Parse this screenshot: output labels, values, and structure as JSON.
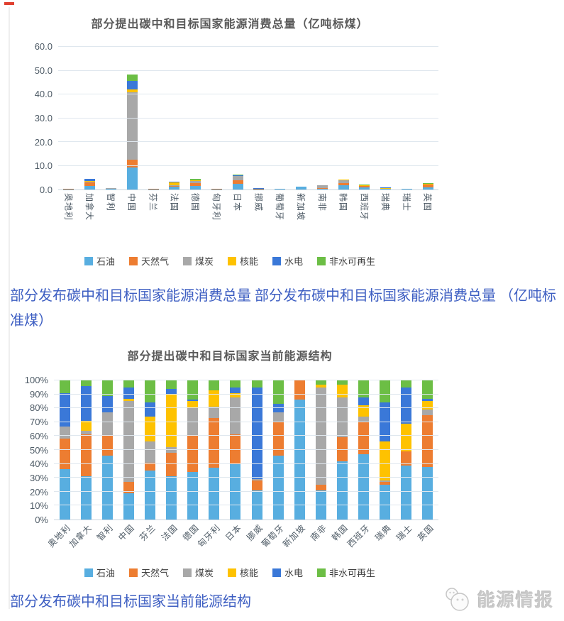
{
  "captions": {
    "middle": "部分发布碳中和目标国家能源消费总量 部分发布碳中和目标国家能源消费总量 （亿吨标准煤）",
    "bottom": "部分发布碳中和目标国家当前能源结构"
  },
  "logo": {
    "text": "能源情报"
  },
  "colors": {
    "oil": "#58aee0",
    "gas": "#ed7d31",
    "coal": "#a8a8a8",
    "nuclear": "#fec200",
    "hydro": "#3a78d8",
    "renewable": "#6cbe45",
    "caption_blue": "#3d5ec2",
    "title_gray": "#595959",
    "red_dash": "#e04030"
  },
  "chart_data": [
    {
      "type": "bar",
      "stacked": true,
      "title": "部分提出碳中和目标国家能源消费总量（亿吨标煤）",
      "categories": [
        "奥地利",
        "加拿大",
        "智利",
        "中国",
        "芬兰",
        "法国",
        "德国",
        "匈牙利",
        "日本",
        "挪威",
        "葡萄牙",
        "新加坡",
        "南非",
        "韩国",
        "西班牙",
        "瑞典",
        "瑞士",
        "英国"
      ],
      "series": [
        {
          "name": "石油",
          "color": "#58aee0",
          "values": [
            0.15,
            1.5,
            0.25,
            9.3,
            0.15,
            1.1,
            1.6,
            0.15,
            2.5,
            0.13,
            0.16,
            1.1,
            0.4,
            1.8,
            1.0,
            0.22,
            0.17,
            1.0
          ]
        },
        {
          "name": "天然气",
          "color": "#ed7d31",
          "values": [
            0.1,
            1.6,
            0.1,
            3.2,
            0.03,
            0.55,
            1.2,
            0.14,
            1.4,
            0.05,
            0.08,
            0.2,
            0.08,
            0.75,
            0.5,
            0.02,
            0.05,
            1.05
          ]
        },
        {
          "name": "煤炭",
          "color": "#a8a8a8",
          "values": [
            0.05,
            0.2,
            0.15,
            28.5,
            0.07,
            0.1,
            0.9,
            0.03,
            1.7,
            0.01,
            0.04,
            0,
            1.32,
            1.2,
            0.1,
            0.05,
            0,
            0.1
          ]
        },
        {
          "name": "核能",
          "color": "#fec200",
          "values": [
            0,
            0.3,
            0,
            1.0,
            0.08,
            1.3,
            0.2,
            0.05,
            0.2,
            0,
            0,
            0,
            0.04,
            0.4,
            0.2,
            0.25,
            0.1,
            0.2
          ]
        },
        {
          "name": "水电",
          "color": "#3a78d8",
          "values": [
            0.1,
            0.9,
            0.05,
            3.8,
            0.06,
            0.15,
            0.1,
            0,
            0.25,
            0.38,
            0.02,
            0,
            0,
            0,
            0.1,
            0.25,
            0.11,
            0.05
          ]
        },
        {
          "name": "非水可再生",
          "color": "#6cbe45",
          "values": [
            0.05,
            0.1,
            0.05,
            2.7,
            0.06,
            0.2,
            0.6,
            0.03,
            0.35,
            0.04,
            0.05,
            0,
            0.06,
            0.15,
            0.2,
            0.11,
            0.02,
            0.3
          ]
        }
      ],
      "ylim": [
        0,
        60
      ],
      "y_ticks": [
        "0.0",
        "10.0",
        "20.0",
        "30.0",
        "40.0",
        "50.0",
        "60.0"
      ],
      "grid": true,
      "legend_position": "bottom",
      "x_label_rotation": 90
    },
    {
      "type": "bar",
      "stacked": true,
      "percent": true,
      "title": "部分提出碳中和目标国家当前能源结构",
      "categories": [
        "奥地利",
        "加拿大",
        "智利",
        "中国",
        "芬兰",
        "法国",
        "德国",
        "匈牙利",
        "日本",
        "挪威",
        "葡萄牙",
        "新加坡",
        "南非",
        "韩国",
        "西班牙",
        "瑞典",
        "瑞士",
        "英国"
      ],
      "series": [
        {
          "name": "石油",
          "color": "#58aee0",
          "values": [
            36,
            31,
            46,
            19,
            35,
            31,
            34,
            37,
            40,
            21,
            46,
            86,
            21,
            42,
            47,
            25,
            39,
            38
          ]
        },
        {
          "name": "天然气",
          "color": "#ed7d31",
          "values": [
            22,
            30,
            14,
            8,
            6,
            17,
            26,
            36,
            21,
            7,
            24,
            14,
            4,
            17,
            23,
            2,
            10,
            37
          ]
        },
        {
          "name": "煤炭",
          "color": "#a8a8a8",
          "values": [
            9,
            3,
            17,
            58,
            15,
            4,
            20,
            8,
            27,
            1,
            7,
            0,
            70,
            29,
            4,
            1,
            0,
            4
          ]
        },
        {
          "name": "核能",
          "color": "#fec200",
          "values": [
            0,
            7,
            0,
            2,
            18,
            38,
            5,
            12,
            3,
            0,
            0,
            0,
            2,
            9,
            8,
            28,
            20,
            6
          ]
        },
        {
          "name": "水电",
          "color": "#3a78d8",
          "values": [
            24,
            25,
            12,
            8,
            10,
            4,
            1,
            0,
            4,
            66,
            6,
            0,
            0,
            0,
            6,
            28,
            26,
            2
          ]
        },
        {
          "name": "非水可再生",
          "color": "#6cbe45",
          "values": [
            9,
            4,
            11,
            5,
            16,
            6,
            14,
            7,
            5,
            5,
            17,
            0,
            3,
            3,
            12,
            16,
            5,
            13
          ]
        }
      ],
      "ylim": [
        0,
        100
      ],
      "y_ticks": [
        "0%",
        "10%",
        "20%",
        "30%",
        "40%",
        "50%",
        "60%",
        "70%",
        "80%",
        "90%",
        "100%"
      ],
      "grid": true,
      "legend_position": "bottom",
      "x_label_rotation": -45
    }
  ]
}
